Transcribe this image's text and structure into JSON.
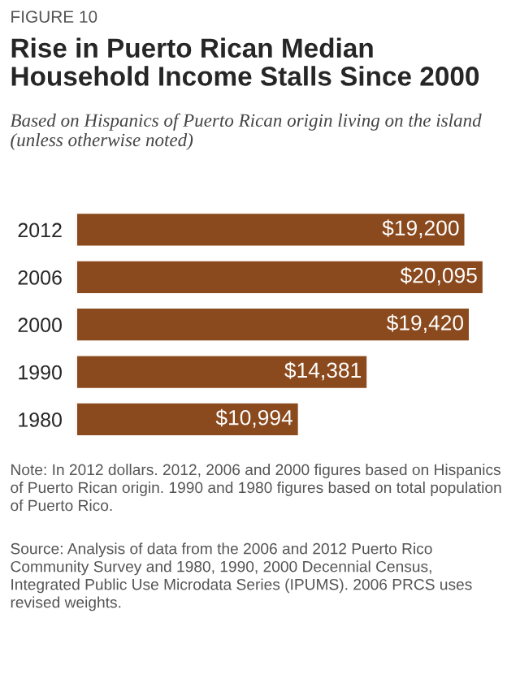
{
  "chart_data": {
    "type": "bar",
    "orientation": "horizontal",
    "title": "Rise in Puerto Rican Median Household Income Stalls Since 2000",
    "subtitle": "Based on Hispanics of Puerto Rican origin living on the island (unless otherwise noted)",
    "categories": [
      "2012",
      "2006",
      "2000",
      "1990",
      "1980"
    ],
    "values": [
      19200,
      20095,
      19420,
      14381,
      10994
    ],
    "value_labels": [
      "$19,200",
      "$20,095",
      "$19,420",
      "$14,381",
      "$10,994"
    ],
    "color": "#8b4a1e",
    "annotations": [
      "FIGURE 10",
      "Note: In 2012 dollars. 2012, 2006 and 2000 figures based on Hispanics of Puerto Rican origin. 1990 and 1980 figures based on total population of Puerto Rico.",
      "Source: Analysis of data from the 2006 and 2012 Puerto Rico Community Survey and 1980, 1990, 2000 Decennial Census, Integrated Public Use Microdata Series (IPUMS). 2006 PRCS uses revised weights."
    ]
  }
}
